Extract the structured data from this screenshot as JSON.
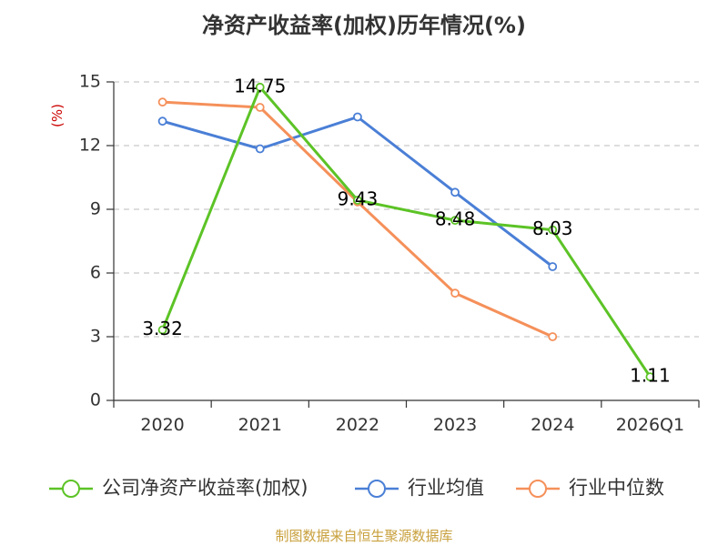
{
  "chart_data": {
    "type": "line",
    "title": "净资产收益率(加权)历年情况(%)",
    "ylabel": "(%)",
    "xlabel": "",
    "categories": [
      "2020",
      "2021",
      "2022",
      "2023",
      "2024",
      "2026Q1"
    ],
    "ylim": [
      0,
      15
    ],
    "yticks": [
      0,
      3,
      6,
      9,
      12,
      15
    ],
    "grid": true,
    "legend_position": "bottom",
    "series": [
      {
        "name": "公司净资产收益率(加权)",
        "color": "#5cc326",
        "values": [
          3.32,
          14.75,
          9.43,
          8.48,
          8.03,
          1.11
        ],
        "labels": [
          "3.32",
          "14.75",
          "9.43",
          "8.48",
          "8.03",
          "1.11"
        ]
      },
      {
        "name": "行业均值",
        "color": "#4a7fd6",
        "values": [
          13.15,
          11.85,
          13.35,
          9.8,
          6.3,
          null
        ]
      },
      {
        "name": "行业中位数",
        "color": "#f5905a",
        "values": [
          14.05,
          13.8,
          9.35,
          5.05,
          3.0,
          null
        ]
      }
    ]
  },
  "source": "制图数据来自恒生聚源数据库"
}
